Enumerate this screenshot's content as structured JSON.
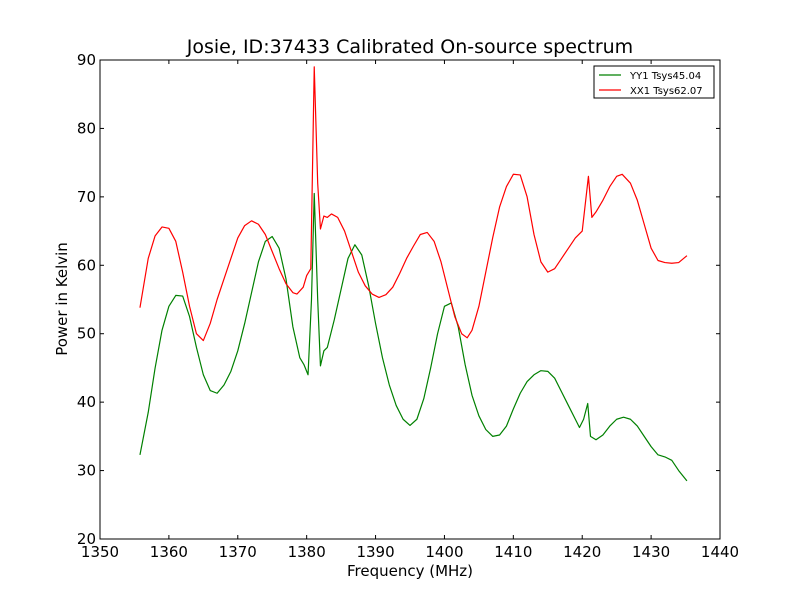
{
  "chart_data": {
    "type": "line",
    "title": "Josie, ID:37433 Calibrated On-source spectrum",
    "xlabel": "Frequency (MHz)",
    "ylabel": "Power in Kelvin",
    "xlim": [
      1350,
      1440
    ],
    "ylim": [
      20,
      90
    ],
    "xticks": [
      1350,
      1360,
      1370,
      1380,
      1390,
      1400,
      1410,
      1420,
      1430,
      1440
    ],
    "yticks": [
      20,
      30,
      40,
      50,
      60,
      70,
      80,
      90
    ],
    "grid": false,
    "legend_position": "top-right",
    "series": [
      {
        "name": "YY1 Tsys45.04",
        "color": "#008000",
        "points": [
          [
            1355.8,
            32.3
          ],
          [
            1357.0,
            38.5
          ],
          [
            1358.0,
            45.0
          ],
          [
            1359.0,
            50.5
          ],
          [
            1360.0,
            54.0
          ],
          [
            1361.0,
            55.6
          ],
          [
            1362.0,
            55.5
          ],
          [
            1363.0,
            52.5
          ],
          [
            1364.0,
            48.0
          ],
          [
            1365.0,
            44.0
          ],
          [
            1366.0,
            41.7
          ],
          [
            1367.0,
            41.3
          ],
          [
            1368.0,
            42.5
          ],
          [
            1369.0,
            44.5
          ],
          [
            1370.0,
            47.5
          ],
          [
            1371.0,
            51.5
          ],
          [
            1372.0,
            56.0
          ],
          [
            1373.0,
            60.5
          ],
          [
            1374.0,
            63.5
          ],
          [
            1375.0,
            64.2
          ],
          [
            1376.0,
            62.5
          ],
          [
            1377.0,
            58.0
          ],
          [
            1378.0,
            51.0
          ],
          [
            1379.0,
            46.5
          ],
          [
            1379.6,
            45.5
          ],
          [
            1380.2,
            44.0
          ],
          [
            1380.7,
            55.0
          ],
          [
            1381.1,
            70.5
          ],
          [
            1381.6,
            55.0
          ],
          [
            1382.0,
            45.3
          ],
          [
            1382.5,
            47.5
          ],
          [
            1383.0,
            48.0
          ],
          [
            1384.0,
            52.0
          ],
          [
            1385.0,
            56.5
          ],
          [
            1386.0,
            61.0
          ],
          [
            1387.0,
            63.0
          ],
          [
            1388.0,
            61.5
          ],
          [
            1389.0,
            57.0
          ],
          [
            1390.0,
            51.5
          ],
          [
            1391.0,
            46.5
          ],
          [
            1392.0,
            42.5
          ],
          [
            1393.0,
            39.5
          ],
          [
            1394.0,
            37.5
          ],
          [
            1395.0,
            36.6
          ],
          [
            1396.0,
            37.5
          ],
          [
            1397.0,
            40.5
          ],
          [
            1398.0,
            45.0
          ],
          [
            1399.0,
            50.0
          ],
          [
            1400.0,
            54.0
          ],
          [
            1401.0,
            54.5
          ],
          [
            1402.0,
            51.0
          ],
          [
            1403.0,
            45.5
          ],
          [
            1404.0,
            41.0
          ],
          [
            1405.0,
            38.0
          ],
          [
            1406.0,
            36.0
          ],
          [
            1407.0,
            35.0
          ],
          [
            1408.0,
            35.2
          ],
          [
            1409.0,
            36.5
          ],
          [
            1410.0,
            39.0
          ],
          [
            1411.0,
            41.3
          ],
          [
            1412.0,
            43.0
          ],
          [
            1413.0,
            44.0
          ],
          [
            1414.0,
            44.6
          ],
          [
            1415.0,
            44.5
          ],
          [
            1416.0,
            43.5
          ],
          [
            1417.0,
            41.5
          ],
          [
            1418.0,
            39.5
          ],
          [
            1419.0,
            37.5
          ],
          [
            1419.6,
            36.3
          ],
          [
            1420.2,
            37.5
          ],
          [
            1420.8,
            39.8
          ],
          [
            1421.2,
            35.0
          ],
          [
            1422.0,
            34.5
          ],
          [
            1423.0,
            35.2
          ],
          [
            1424.0,
            36.5
          ],
          [
            1425.0,
            37.5
          ],
          [
            1426.0,
            37.8
          ],
          [
            1427.0,
            37.5
          ],
          [
            1428.0,
            36.5
          ],
          [
            1429.0,
            35.0
          ],
          [
            1430.0,
            33.5
          ],
          [
            1431.0,
            32.3
          ],
          [
            1432.0,
            32.0
          ],
          [
            1433.0,
            31.5
          ],
          [
            1434.0,
            30.0
          ],
          [
            1435.2,
            28.5
          ]
        ]
      },
      {
        "name": "XX1 Tsys62.07",
        "color": "#ff0000",
        "points": [
          [
            1355.8,
            53.8
          ],
          [
            1357.0,
            61.0
          ],
          [
            1358.0,
            64.3
          ],
          [
            1359.0,
            65.6
          ],
          [
            1360.0,
            65.4
          ],
          [
            1361.0,
            63.5
          ],
          [
            1362.0,
            59.0
          ],
          [
            1363.0,
            54.0
          ],
          [
            1364.0,
            50.0
          ],
          [
            1365.0,
            49.0
          ],
          [
            1366.0,
            51.5
          ],
          [
            1367.0,
            55.0
          ],
          [
            1368.0,
            58.0
          ],
          [
            1369.0,
            61.0
          ],
          [
            1370.0,
            64.0
          ],
          [
            1371.0,
            65.8
          ],
          [
            1372.0,
            66.5
          ],
          [
            1373.0,
            66.0
          ],
          [
            1374.0,
            64.5
          ],
          [
            1375.0,
            62.0
          ],
          [
            1376.0,
            59.5
          ],
          [
            1377.0,
            57.3
          ],
          [
            1378.0,
            56.0
          ],
          [
            1378.6,
            55.8
          ],
          [
            1379.5,
            56.8
          ],
          [
            1380.0,
            58.5
          ],
          [
            1380.6,
            59.5
          ],
          [
            1381.1,
            89.0
          ],
          [
            1381.6,
            72.0
          ],
          [
            1382.0,
            65.3
          ],
          [
            1382.5,
            67.2
          ],
          [
            1383.0,
            67.0
          ],
          [
            1383.6,
            67.5
          ],
          [
            1384.5,
            67.0
          ],
          [
            1385.5,
            65.0
          ],
          [
            1386.5,
            62.0
          ],
          [
            1387.5,
            59.0
          ],
          [
            1388.5,
            57.0
          ],
          [
            1389.5,
            55.8
          ],
          [
            1390.5,
            55.3
          ],
          [
            1391.5,
            55.7
          ],
          [
            1392.5,
            56.8
          ],
          [
            1393.5,
            58.8
          ],
          [
            1394.5,
            61.0
          ],
          [
            1395.5,
            62.8
          ],
          [
            1396.5,
            64.5
          ],
          [
            1397.5,
            64.8
          ],
          [
            1398.5,
            63.5
          ],
          [
            1399.5,
            60.5
          ],
          [
            1400.5,
            56.5
          ],
          [
            1401.5,
            52.5
          ],
          [
            1402.5,
            50.0
          ],
          [
            1403.3,
            49.4
          ],
          [
            1404.0,
            50.5
          ],
          [
            1405.0,
            54.0
          ],
          [
            1406.0,
            59.0
          ],
          [
            1407.0,
            64.0
          ],
          [
            1408.0,
            68.5
          ],
          [
            1409.0,
            71.5
          ],
          [
            1410.0,
            73.3
          ],
          [
            1411.0,
            73.2
          ],
          [
            1412.0,
            70.0
          ],
          [
            1413.0,
            64.5
          ],
          [
            1414.0,
            60.5
          ],
          [
            1415.0,
            59.0
          ],
          [
            1416.0,
            59.5
          ],
          [
            1417.0,
            61.0
          ],
          [
            1418.0,
            62.5
          ],
          [
            1419.0,
            64.0
          ],
          [
            1420.0,
            65.0
          ],
          [
            1420.9,
            73.0
          ],
          [
            1421.4,
            67.0
          ],
          [
            1422.0,
            67.8
          ],
          [
            1423.0,
            69.5
          ],
          [
            1424.0,
            71.5
          ],
          [
            1425.0,
            73.0
          ],
          [
            1425.8,
            73.3
          ],
          [
            1427.0,
            72.0
          ],
          [
            1428.0,
            69.5
          ],
          [
            1429.0,
            66.0
          ],
          [
            1430.0,
            62.5
          ],
          [
            1431.0,
            60.7
          ],
          [
            1432.0,
            60.4
          ],
          [
            1433.0,
            60.3
          ],
          [
            1434.0,
            60.4
          ],
          [
            1435.2,
            61.4
          ]
        ]
      }
    ]
  }
}
